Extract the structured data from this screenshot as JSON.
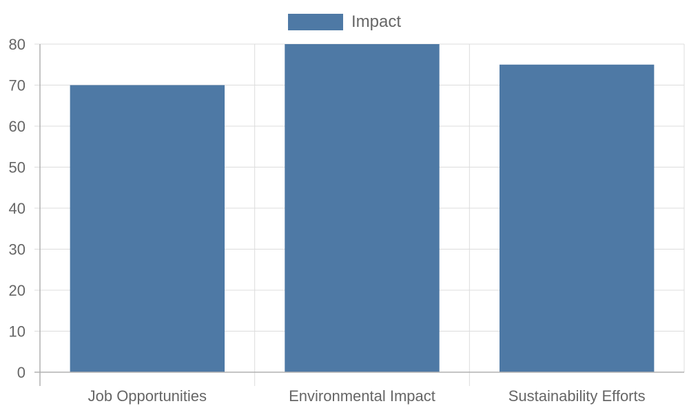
{
  "chart_data": {
    "type": "bar",
    "categories": [
      "Job Opportunities",
      "Environmental Impact",
      "Sustainability Efforts"
    ],
    "series": [
      {
        "name": "Impact",
        "values": [
          70,
          80,
          75
        ],
        "color": "#4e79a5"
      }
    ],
    "title": "",
    "xlabel": "",
    "ylabel": "",
    "ylim": [
      0,
      80
    ],
    "yticks": [
      "0",
      "10",
      "20",
      "30",
      "40",
      "50",
      "60",
      "70",
      "80"
    ],
    "grid": true,
    "legend_position": "top-center"
  }
}
